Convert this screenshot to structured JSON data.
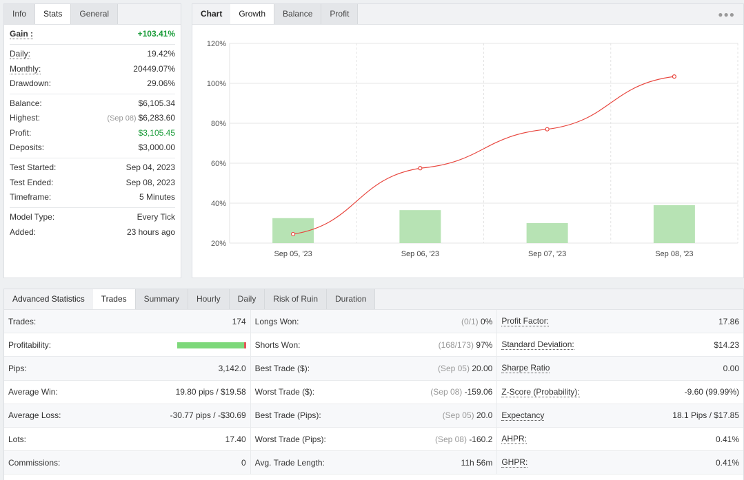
{
  "info": {
    "tabs": [
      "Info",
      "Stats",
      "General"
    ],
    "active_tab": "Stats",
    "gain": {
      "label": "Gain :",
      "value": "+103.41%"
    },
    "daily": {
      "label": "Daily:",
      "value": "19.42%"
    },
    "monthly": {
      "label": "Monthly:",
      "value": "20449.07%"
    },
    "drawdown": {
      "label": "Drawdown:",
      "value": "29.06%"
    },
    "balance": {
      "label": "Balance:",
      "value": "$6,105.34"
    },
    "highest": {
      "label": "Highest:",
      "note": "(Sep 08)",
      "value": "$6,283.60"
    },
    "profit": {
      "label": "Profit:",
      "value": "$3,105.45"
    },
    "deposits": {
      "label": "Deposits:",
      "value": "$3,000.00"
    },
    "test_started": {
      "label": "Test Started:",
      "value": "Sep 04, 2023"
    },
    "test_ended": {
      "label": "Test Ended:",
      "value": "Sep 08, 2023"
    },
    "timeframe": {
      "label": "Timeframe:",
      "value": "5 Minutes"
    },
    "model_type": {
      "label": "Model Type:",
      "value": "Every Tick"
    },
    "added": {
      "label": "Added:",
      "value": "23 hours ago"
    }
  },
  "chart_panel": {
    "tabs": [
      "Chart",
      "Growth",
      "Balance",
      "Profit"
    ],
    "active_tab": "Growth",
    "more_icon": "more-dots-icon"
  },
  "chart_data": {
    "type": "line",
    "categories": [
      "Sep 05, '23",
      "Sep 06, '23",
      "Sep 07, '23",
      "Sep 08, '23"
    ],
    "y_ticks": [
      "20%",
      "40%",
      "60%",
      "80%",
      "100%",
      "120%"
    ],
    "ylim": [
      20,
      120
    ],
    "series": [
      {
        "type": "line",
        "values": [
          24.5,
          57.5,
          77,
          103.4
        ],
        "color": "#e8473f"
      },
      {
        "type": "bar",
        "values": [
          32.5,
          36.5,
          30,
          39
        ],
        "color": "#b7e3b4"
      }
    ],
    "grid": true
  },
  "adv": {
    "title": "Advanced Statistics",
    "tabs": [
      "Trades",
      "Summary",
      "Hourly",
      "Daily",
      "Risk of Ruin",
      "Duration"
    ],
    "active_tab": "Trades",
    "col1": [
      {
        "label": "Trades:",
        "value": "174"
      },
      {
        "label": "Profitability:",
        "value": "",
        "progress": 0.97
      },
      {
        "label": "Pips:",
        "value": "3,142.0"
      },
      {
        "label": "Average Win:",
        "value": "19.80 pips / $19.58"
      },
      {
        "label": "Average Loss:",
        "value": "-30.77 pips / -$30.69"
      },
      {
        "label": "Lots:",
        "value": "17.40"
      },
      {
        "label": "Commissions:",
        "value": "0"
      }
    ],
    "col2": [
      {
        "label": "Longs Won:",
        "note": "(0/1)",
        "value": "0%"
      },
      {
        "label": "Shorts Won:",
        "note": "(168/173)",
        "value": "97%"
      },
      {
        "label": "Best Trade ($):",
        "note": "(Sep 05)",
        "value": "20.00"
      },
      {
        "label": "Worst Trade ($):",
        "note": "(Sep 08)",
        "value": "-159.06"
      },
      {
        "label": "Best Trade (Pips):",
        "note": "(Sep 05)",
        "value": "20.0"
      },
      {
        "label": "Worst Trade (Pips):",
        "note": "(Sep 08)",
        "value": "-160.2"
      },
      {
        "label": "Avg. Trade Length:",
        "note": "",
        "value": "11h 56m"
      }
    ],
    "col3": [
      {
        "label": "Profit Factor:",
        "value": "17.86"
      },
      {
        "label": "Standard Deviation:",
        "value": "$14.23"
      },
      {
        "label": "Sharpe Ratio",
        "value": "0.00"
      },
      {
        "label": "Z-Score (Probability):",
        "value": "-9.60 (99.99%)"
      },
      {
        "label": "Expectancy",
        "value": "18.1 Pips / $17.85"
      },
      {
        "label": "AHPR:",
        "value": "0.41%"
      },
      {
        "label": "GHPR:",
        "value": "0.41%"
      }
    ]
  }
}
